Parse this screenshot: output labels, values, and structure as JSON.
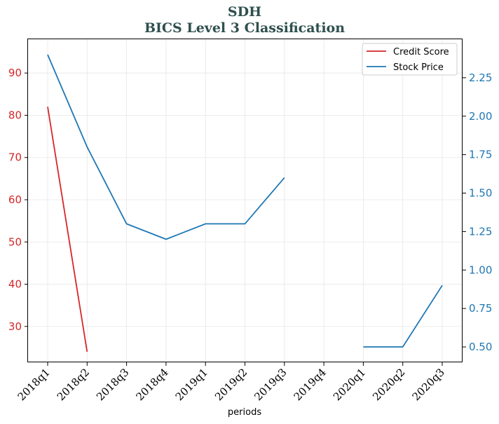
{
  "chart_data": {
    "type": "line",
    "title": "SDH",
    "subtitle": "BICS Level 3 Classification",
    "xlabel": "periods",
    "categories": [
      "2018q1",
      "2018q2",
      "2018q3",
      "2018q4",
      "2019q1",
      "2019q2",
      "2019q3",
      "2019q4",
      "2020q1",
      "2020q2",
      "2020q3"
    ],
    "grid": true,
    "legend_position": "top-right",
    "y_left": {
      "ylim": [
        21.5,
        98
      ],
      "ticks": [
        30,
        40,
        50,
        60,
        70,
        80,
        90
      ],
      "color": "#d62728"
    },
    "y_right": {
      "ylim": [
        0.4,
        2.5
      ],
      "ticks": [
        "0.50",
        "0.75",
        "1.00",
        "1.25",
        "1.50",
        "1.75",
        "2.00",
        "2.25"
      ],
      "color": "#1f77b4"
    },
    "series": [
      {
        "name": "Credit Score",
        "axis": "left",
        "color": "#d62728",
        "values": [
          82,
          24,
          null,
          null,
          null,
          null,
          null,
          null,
          null,
          null,
          null
        ]
      },
      {
        "name": "Stock Price",
        "axis": "right",
        "color": "#1f77b4",
        "values": [
          2.4,
          1.8,
          1.3,
          1.2,
          1.3,
          1.3,
          1.6,
          null,
          0.5,
          0.5,
          0.9
        ]
      }
    ]
  }
}
